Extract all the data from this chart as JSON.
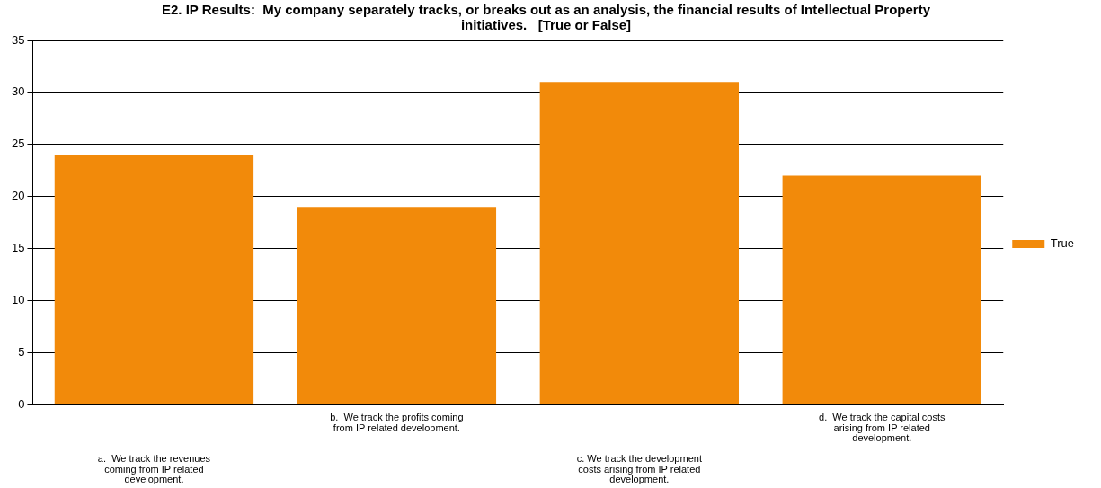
{
  "chart_data": {
    "type": "bar",
    "title": "E2. IP Results:  My company separately tracks, or breaks out as an analysis, the financial results of Intellectual Property initiatives.   [True or False]",
    "categories": [
      "a.  We track the revenues coming from IP related development.",
      "b.  We track the profits coming from IP related development.",
      "c. We track the development costs arising from IP related development.",
      "d.  We track the capital costs arising from IP related development."
    ],
    "series": [
      {
        "name": "True",
        "color": "#f28a0a",
        "values": [
          24,
          19,
          31,
          22
        ]
      }
    ],
    "ylim": [
      0,
      35
    ],
    "yticks": [
      0,
      5,
      10,
      15,
      20,
      25,
      30,
      35
    ],
    "grid": "y",
    "legend": "right"
  }
}
